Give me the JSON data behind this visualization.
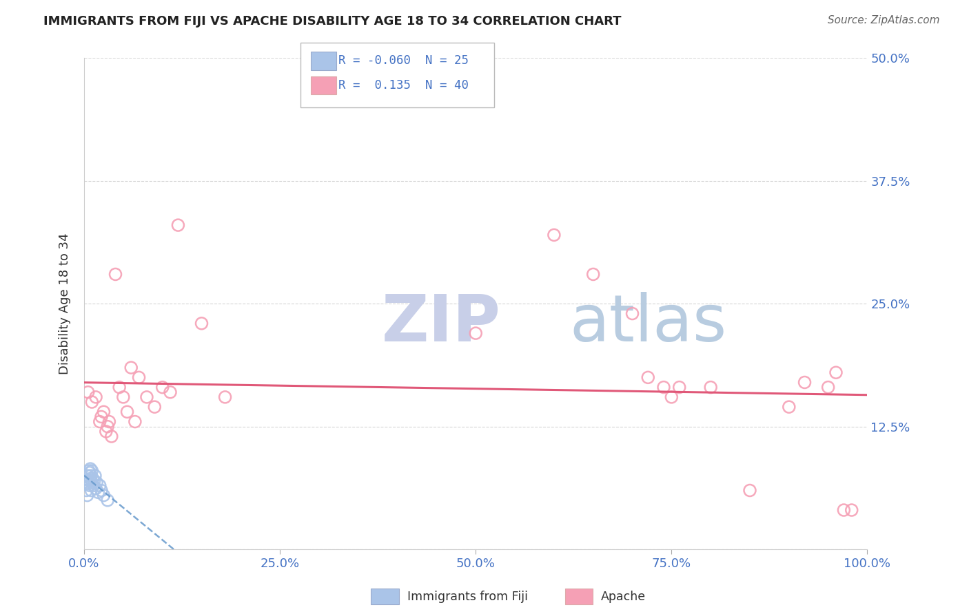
{
  "title": "IMMIGRANTS FROM FIJI VS APACHE DISABILITY AGE 18 TO 34 CORRELATION CHART",
  "source": "Source: ZipAtlas.com",
  "ylabel": "Disability Age 18 to 34",
  "xlim": [
    0.0,
    1.0
  ],
  "ylim": [
    0.0,
    0.5
  ],
  "yticks": [
    0.0,
    0.125,
    0.25,
    0.375,
    0.5
  ],
  "ytick_labels": [
    "",
    "12.5%",
    "25.0%",
    "37.5%",
    "50.0%"
  ],
  "xticks": [
    0.0,
    0.25,
    0.5,
    0.75,
    1.0
  ],
  "xtick_labels": [
    "0.0%",
    "25.0%",
    "50.0%",
    "75.0%",
    "100.0%"
  ],
  "fiji_R": -0.06,
  "fiji_N": 25,
  "apache_R": 0.135,
  "apache_N": 40,
  "fiji_color": "#aac4e8",
  "apache_color": "#f5a0b5",
  "fiji_line_color": "#6699cc",
  "apache_line_color": "#e05878",
  "fiji_x": [
    0.003,
    0.004,
    0.005,
    0.005,
    0.006,
    0.006,
    0.007,
    0.007,
    0.008,
    0.008,
    0.009,
    0.009,
    0.01,
    0.01,
    0.011,
    0.012,
    0.013,
    0.014,
    0.015,
    0.016,
    0.018,
    0.02,
    0.022,
    0.025,
    0.03
  ],
  "fiji_y": [
    0.06,
    0.055,
    0.068,
    0.075,
    0.07,
    0.08,
    0.065,
    0.078,
    0.072,
    0.082,
    0.06,
    0.075,
    0.068,
    0.08,
    0.072,
    0.065,
    0.07,
    0.075,
    0.062,
    0.068,
    0.058,
    0.065,
    0.06,
    0.055,
    0.05
  ],
  "apache_x": [
    0.005,
    0.01,
    0.015,
    0.02,
    0.022,
    0.025,
    0.028,
    0.03,
    0.032,
    0.035,
    0.04,
    0.045,
    0.05,
    0.055,
    0.06,
    0.065,
    0.07,
    0.08,
    0.09,
    0.1,
    0.11,
    0.12,
    0.15,
    0.18,
    0.5,
    0.6,
    0.65,
    0.7,
    0.72,
    0.74,
    0.75,
    0.76,
    0.8,
    0.85,
    0.9,
    0.92,
    0.95,
    0.96,
    0.97,
    0.98
  ],
  "apache_y": [
    0.16,
    0.15,
    0.155,
    0.13,
    0.135,
    0.14,
    0.12,
    0.125,
    0.13,
    0.115,
    0.28,
    0.165,
    0.155,
    0.14,
    0.185,
    0.13,
    0.175,
    0.155,
    0.145,
    0.165,
    0.16,
    0.33,
    0.23,
    0.155,
    0.22,
    0.32,
    0.28,
    0.24,
    0.175,
    0.165,
    0.155,
    0.165,
    0.165,
    0.06,
    0.145,
    0.17,
    0.165,
    0.18,
    0.04,
    0.04
  ],
  "background_color": "#ffffff",
  "grid_color": "#cccccc",
  "watermark_text": "ZIPatlas",
  "watermark_color": "#d0d8e8"
}
